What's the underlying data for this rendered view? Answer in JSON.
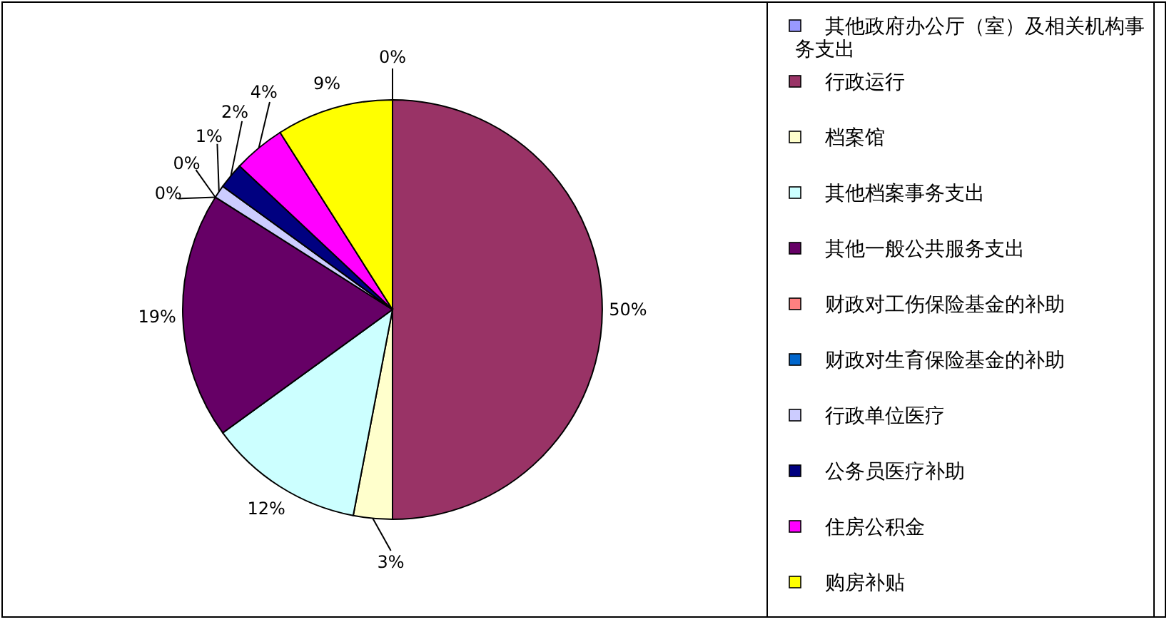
{
  "chart_data": {
    "type": "pie",
    "categories": [
      "其他政府办公厅（室）及相关机构事务支出",
      "行政运行",
      "档案馆",
      "其他档案事务支出",
      "其他一般公共服务支出",
      "财政对工伤保险基金的补助",
      "财政对生育保险基金的补助",
      "行政单位医疗",
      "公务员医疗补助",
      "住房公积金",
      "购房补贴"
    ],
    "values": [
      0,
      50,
      3,
      12,
      19,
      0,
      0,
      1,
      2,
      4,
      9
    ],
    "value_labels": [
      "0%",
      "50%",
      "3%",
      "12%",
      "19%",
      "0%",
      "0%",
      "1%",
      "2%",
      "4%",
      "9%"
    ],
    "colors": [
      "#9999ff",
      "#993366",
      "#ffffcc",
      "#ccffff",
      "#660066",
      "#ff8080",
      "#0066cc",
      "#ccccff",
      "#000080",
      "#ff00ff",
      "#ffff00"
    ],
    "legend": "right"
  }
}
